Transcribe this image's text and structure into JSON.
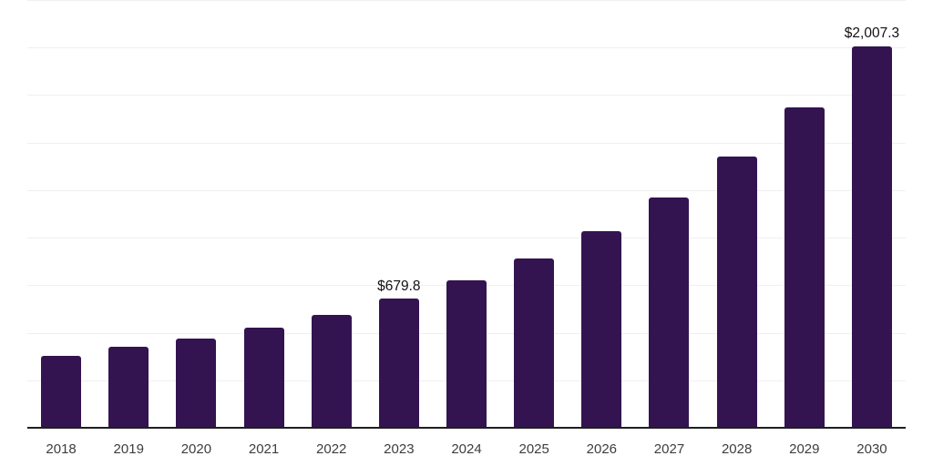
{
  "chart_data": {
    "type": "bar",
    "title": "",
    "xlabel": "",
    "ylabel": "",
    "categories": [
      "2018",
      "2019",
      "2020",
      "2021",
      "2022",
      "2023",
      "2024",
      "2025",
      "2026",
      "2027",
      "2028",
      "2029",
      "2030"
    ],
    "values": [
      378,
      424,
      469,
      527,
      594,
      679.8,
      777,
      889,
      1034,
      1211,
      1427,
      1687,
      2007.3
    ],
    "data_labels": [
      "",
      "",
      "",
      "",
      "",
      "$679.8",
      "",
      "",
      "",
      "",
      "",
      "",
      "$2,007.3"
    ],
    "ylim": [
      0,
      2250
    ],
    "gridline_step": 250,
    "grid": true,
    "legend": false,
    "y_axis_tick_labels_visible": false
  },
  "style": {
    "bar_color": "#331450",
    "gridline_color": "#f0f0f0",
    "axis_line_color": "#1f1f1f",
    "tick_label_color": "#3d3d3d",
    "data_label_color": "#111111",
    "background_color": "#ffffff"
  }
}
